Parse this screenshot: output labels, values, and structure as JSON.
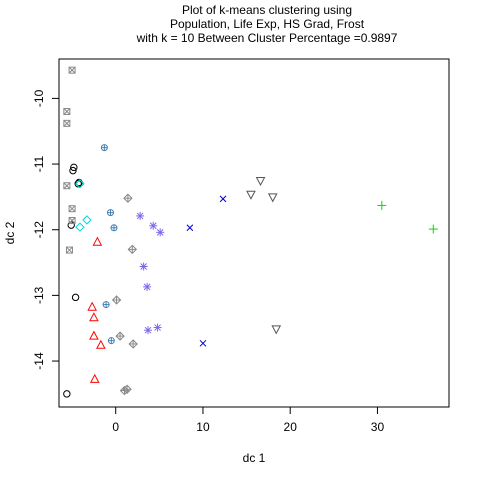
{
  "chart_data": {
    "type": "scatter",
    "title_lines": [
      "Plot of k-means clustering using",
      "Population, Life Exp, HS Grad, Frost",
      "with  k = 10 Between Cluster Percentage =0.9897"
    ],
    "xlabel": "dc 1",
    "ylabel": "dc 2",
    "xlim": [
      -6.5,
      38.2
    ],
    "ylim": [
      -14.7,
      -9.4
    ],
    "x_ticks": [
      0,
      10,
      20,
      30
    ],
    "y_ticks": [
      -10,
      -11,
      -12,
      -13,
      -14
    ],
    "grid": false,
    "legend": "none",
    "series": [
      {
        "marker": "circle",
        "color": "#000000",
        "points": [
          [
            -4.8,
            -11.05
          ],
          [
            -4.9,
            -11.1
          ],
          [
            -4.2,
            -11.28
          ],
          [
            -4.3,
            -11.3
          ],
          [
            -5.1,
            -11.93
          ],
          [
            -4.6,
            -13.03
          ],
          [
            -5.6,
            -14.5
          ]
        ]
      },
      {
        "marker": "triangle",
        "color": "#ff0000",
        "points": [
          [
            -2.1,
            -12.19
          ],
          [
            -2.7,
            -13.18
          ],
          [
            -2.5,
            -13.34
          ],
          [
            -2.5,
            -13.62
          ],
          [
            -1.7,
            -13.76
          ],
          [
            -2.4,
            -14.28
          ]
        ]
      },
      {
        "marker": "plus",
        "color": "#00dd00",
        "points": [
          [
            30.5,
            -11.63
          ],
          [
            36.4,
            -11.99
          ]
        ]
      },
      {
        "marker": "cross",
        "color": "#0000cc",
        "points": [
          [
            12.3,
            -11.53
          ],
          [
            8.5,
            -11.97
          ],
          [
            10.0,
            -13.73
          ]
        ]
      },
      {
        "marker": "diamond",
        "color": "#00dddd",
        "points": [
          [
            -4.1,
            -11.3
          ],
          [
            -3.3,
            -11.85
          ],
          [
            -4.1,
            -11.96
          ]
        ]
      },
      {
        "marker": "triangle-down",
        "color": "#555555",
        "points": [
          [
            16.6,
            -11.25
          ],
          [
            15.5,
            -11.46
          ],
          [
            18.0,
            -11.5
          ],
          [
            18.4,
            -13.51
          ]
        ]
      },
      {
        "marker": "boxed-x",
        "color": "#888888",
        "points": [
          [
            -5.0,
            -9.57
          ],
          [
            -5.6,
            -10.2
          ],
          [
            -5.6,
            -10.38
          ],
          [
            -5.6,
            -11.33
          ],
          [
            -5.0,
            -11.68
          ],
          [
            -5.0,
            -11.86
          ],
          [
            -5.3,
            -12.31
          ]
        ]
      },
      {
        "marker": "asterisk",
        "color": "#7b68ee",
        "points": [
          [
            2.8,
            -11.79
          ],
          [
            4.3,
            -11.94
          ],
          [
            5.1,
            -12.04
          ],
          [
            3.2,
            -12.56
          ],
          [
            3.6,
            -12.87
          ],
          [
            3.7,
            -13.53
          ],
          [
            4.8,
            -13.49
          ]
        ]
      },
      {
        "marker": "diamond-plus",
        "color": "#888888",
        "points": [
          [
            1.4,
            -11.52
          ],
          [
            1.9,
            -12.3
          ],
          [
            0.1,
            -13.07
          ],
          [
            0.5,
            -13.62
          ],
          [
            2.0,
            -13.74
          ],
          [
            1.0,
            -14.45
          ],
          [
            1.3,
            -14.43
          ]
        ]
      },
      {
        "marker": "circle-plus",
        "color": "#4682b4",
        "points": [
          [
            -1.3,
            -10.75
          ],
          [
            -0.6,
            -11.74
          ],
          [
            -0.2,
            -11.97
          ],
          [
            -1.1,
            -13.14
          ],
          [
            -0.5,
            -13.69
          ]
        ]
      }
    ]
  }
}
